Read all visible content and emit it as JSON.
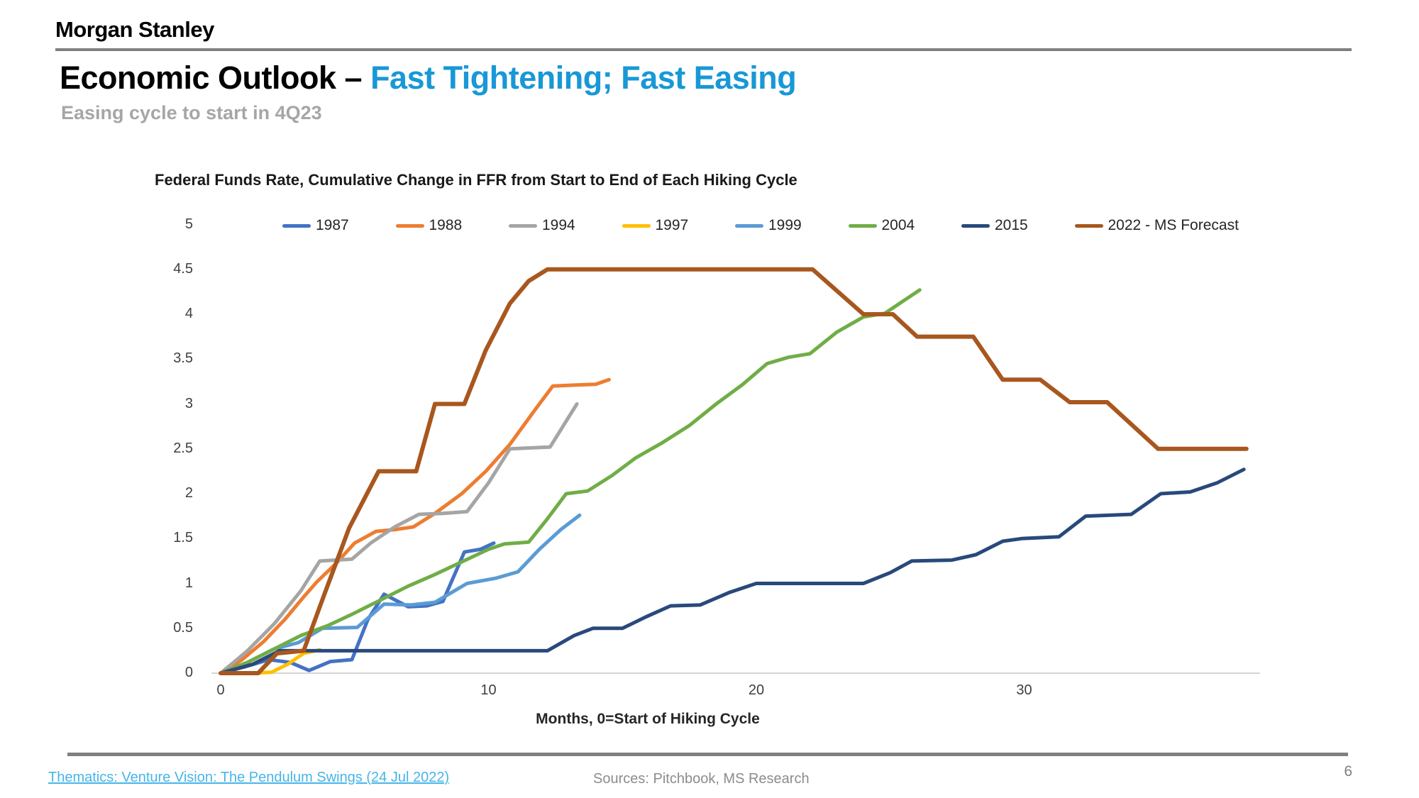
{
  "header": {
    "logo": "Morgan Stanley",
    "title_black": "Economic Outlook – ",
    "title_blue": "Fast Tightening; Fast Easing",
    "subtitle": "Easing cycle to start in 4Q23"
  },
  "colors": {
    "title_accent_blue": "#1898D6",
    "link_blue": "#47B5E8",
    "subtitle_gray": "#A6A6A6",
    "rule_gray": "#808080",
    "axis_line_gray": "#D6D6D6"
  },
  "chart_data": {
    "type": "line",
    "title": "Federal Funds Rate, Cumulative Change in FFR from Start to End of Each Hiking Cycle",
    "xlabel": "Months, 0=Start of Hiking Cycle",
    "ylabel": "",
    "xlim": [
      0,
      38.8
    ],
    "ylim": [
      0,
      5.1
    ],
    "x_ticks": [
      0,
      10,
      20,
      30
    ],
    "y_ticks": [
      0,
      0.5,
      1,
      1.5,
      2,
      2.5,
      3,
      3.5,
      4,
      4.5,
      5
    ],
    "grid": false,
    "legend_position": "top",
    "series": [
      {
        "name": "1987",
        "color": "#4472C4",
        "width": 5,
        "points": [
          [
            0,
            0
          ],
          [
            0.9,
            0.07
          ],
          [
            1.8,
            0.15
          ],
          [
            2.6,
            0.12
          ],
          [
            3.3,
            0.03
          ],
          [
            4.1,
            0.13
          ],
          [
            4.9,
            0.15
          ],
          [
            5.5,
            0.6
          ],
          [
            6.1,
            0.88
          ],
          [
            7.0,
            0.74
          ],
          [
            7.7,
            0.75
          ],
          [
            8.3,
            0.8
          ],
          [
            9.1,
            1.35
          ],
          [
            9.7,
            1.38
          ],
          [
            10.2,
            1.45
          ]
        ]
      },
      {
        "name": "1988",
        "color": "#ED7D31",
        "width": 5,
        "points": [
          [
            0,
            0
          ],
          [
            0.8,
            0.15
          ],
          [
            1.6,
            0.35
          ],
          [
            2.4,
            0.6
          ],
          [
            3.1,
            0.85
          ],
          [
            3.6,
            1.02
          ],
          [
            4.3,
            1.22
          ],
          [
            5.0,
            1.45
          ],
          [
            5.8,
            1.58
          ],
          [
            6.5,
            1.6
          ],
          [
            7.2,
            1.63
          ],
          [
            8.0,
            1.78
          ],
          [
            9.0,
            2.0
          ],
          [
            9.9,
            2.25
          ],
          [
            10.8,
            2.55
          ],
          [
            11.7,
            2.92
          ],
          [
            12.4,
            3.2
          ],
          [
            13.2,
            3.21
          ],
          [
            14.0,
            3.22
          ],
          [
            14.5,
            3.27
          ]
        ]
      },
      {
        "name": "1994",
        "color": "#A5A5A5",
        "width": 5,
        "points": [
          [
            0,
            0
          ],
          [
            1,
            0.25
          ],
          [
            2,
            0.55
          ],
          [
            3,
            0.92
          ],
          [
            3.7,
            1.25
          ],
          [
            4.9,
            1.27
          ],
          [
            5.6,
            1.45
          ],
          [
            6.5,
            1.63
          ],
          [
            7.4,
            1.77
          ],
          [
            8.3,
            1.78
          ],
          [
            9.2,
            1.8
          ],
          [
            10,
            2.12
          ],
          [
            10.8,
            2.5
          ],
          [
            12.3,
            2.52
          ],
          [
            13.3,
            3.0
          ]
        ]
      },
      {
        "name": "1997",
        "color": "#FFC000",
        "width": 5,
        "points": [
          [
            1.1,
            0
          ],
          [
            1.9,
            0.01
          ],
          [
            2.5,
            0.1
          ],
          [
            3.1,
            0.22
          ],
          [
            3.7,
            0.26
          ]
        ]
      },
      {
        "name": "1999",
        "color": "#5B9BD5",
        "width": 5,
        "points": [
          [
            0,
            0
          ],
          [
            1,
            0.12
          ],
          [
            2,
            0.27
          ],
          [
            2.9,
            0.34
          ],
          [
            3.8,
            0.5
          ],
          [
            5.1,
            0.51
          ],
          [
            6.1,
            0.77
          ],
          [
            7.1,
            0.76
          ],
          [
            8.0,
            0.79
          ],
          [
            9.2,
            1.0
          ],
          [
            10.3,
            1.06
          ],
          [
            11.1,
            1.13
          ],
          [
            11.9,
            1.38
          ],
          [
            12.7,
            1.6
          ],
          [
            13.4,
            1.76
          ]
        ]
      },
      {
        "name": "2004",
        "color": "#70AD47",
        "width": 5,
        "points": [
          [
            0,
            0
          ],
          [
            1,
            0.12
          ],
          [
            2,
            0.27
          ],
          [
            3,
            0.42
          ],
          [
            4,
            0.53
          ],
          [
            5,
            0.67
          ],
          [
            6,
            0.82
          ],
          [
            7,
            0.97
          ],
          [
            8,
            1.1
          ],
          [
            9,
            1.24
          ],
          [
            10,
            1.38
          ],
          [
            10.6,
            1.44
          ],
          [
            11.5,
            1.46
          ],
          [
            12.2,
            1.72
          ],
          [
            12.9,
            2.0
          ],
          [
            13.7,
            2.03
          ],
          [
            14.6,
            2.2
          ],
          [
            15.5,
            2.4
          ],
          [
            16.5,
            2.57
          ],
          [
            17.5,
            2.76
          ],
          [
            18.5,
            3.0
          ],
          [
            19.5,
            3.22
          ],
          [
            20.4,
            3.45
          ],
          [
            21.2,
            3.52
          ],
          [
            22.0,
            3.56
          ],
          [
            23.0,
            3.8
          ],
          [
            24.0,
            3.97
          ],
          [
            24.8,
            4.01
          ],
          [
            26.1,
            4.27
          ]
        ]
      },
      {
        "name": "2015",
        "color": "#29497B",
        "width": 5,
        "points": [
          [
            0,
            0
          ],
          [
            1.2,
            0.1
          ],
          [
            2.2,
            0.25
          ],
          [
            12.2,
            0.25
          ],
          [
            13.2,
            0.42
          ],
          [
            13.9,
            0.5
          ],
          [
            15.0,
            0.5
          ],
          [
            15.9,
            0.63
          ],
          [
            16.8,
            0.75
          ],
          [
            17.9,
            0.76
          ],
          [
            19.0,
            0.9
          ],
          [
            20.0,
            1.0
          ],
          [
            24.0,
            1.0
          ],
          [
            25.0,
            1.12
          ],
          [
            25.8,
            1.25
          ],
          [
            27.3,
            1.26
          ],
          [
            28.2,
            1.32
          ],
          [
            29.2,
            1.47
          ],
          [
            29.9,
            1.5
          ],
          [
            31.3,
            1.52
          ],
          [
            32.3,
            1.75
          ],
          [
            34.0,
            1.77
          ],
          [
            35.1,
            2.0
          ],
          [
            36.2,
            2.02
          ],
          [
            37.2,
            2.12
          ],
          [
            38.2,
            2.27
          ]
        ]
      },
      {
        "name": "2022 - MS Forecast",
        "color": "#A8571E",
        "width": 6,
        "points": [
          [
            0,
            0
          ],
          [
            1.4,
            0
          ],
          [
            2.1,
            0.22
          ],
          [
            3.1,
            0.25
          ],
          [
            3.9,
            0.9
          ],
          [
            4.8,
            1.62
          ],
          [
            5.9,
            2.25
          ],
          [
            7.3,
            2.25
          ],
          [
            8.0,
            3.0
          ],
          [
            9.1,
            3.0
          ],
          [
            9.9,
            3.6
          ],
          [
            10.8,
            4.12
          ],
          [
            11.5,
            4.37
          ],
          [
            12.2,
            4.5
          ],
          [
            22.1,
            4.5
          ],
          [
            24.0,
            4.0
          ],
          [
            25.1,
            4.0
          ],
          [
            26.0,
            3.75
          ],
          [
            28.1,
            3.75
          ],
          [
            29.2,
            3.27
          ],
          [
            30.6,
            3.27
          ],
          [
            31.7,
            3.02
          ],
          [
            33.1,
            3.02
          ],
          [
            35.0,
            2.5
          ],
          [
            38.3,
            2.5
          ]
        ]
      }
    ]
  },
  "footer": {
    "link": "Thematics: Venture Vision: The Pendulum Swings (24 Jul 2022)",
    "sources": "Sources: Pitchbook, MS Research",
    "page": "6"
  }
}
